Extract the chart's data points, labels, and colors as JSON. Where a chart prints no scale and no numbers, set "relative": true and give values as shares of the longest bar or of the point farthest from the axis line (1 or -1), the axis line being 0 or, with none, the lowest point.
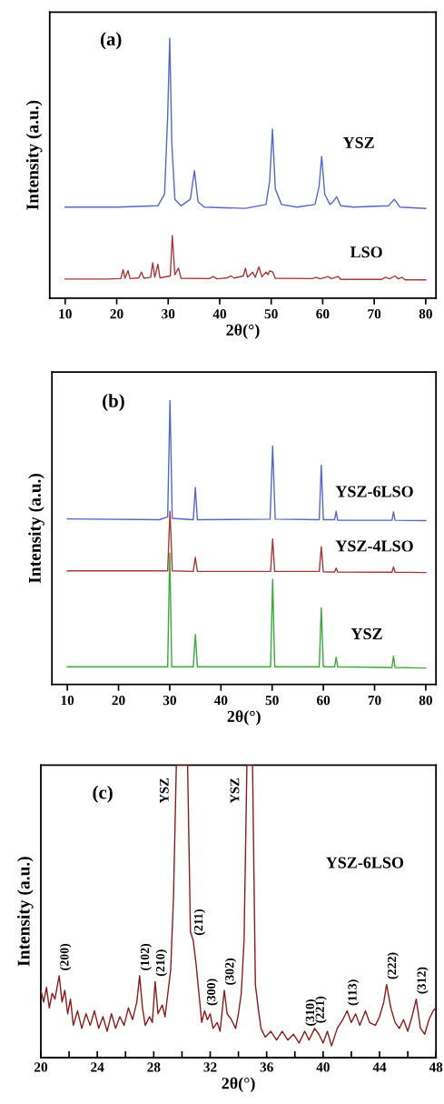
{
  "chart_data": [
    {
      "type": "line",
      "relative": true,
      "xlabel": "2θ(°)",
      "ylabel": "Intensity (a.u.)",
      "xlim": [
        7,
        82
      ],
      "xticks": [
        10,
        20,
        30,
        40,
        50,
        60,
        70,
        80
      ],
      "annotations": [
        "(a)"
      ],
      "series": [
        {
          "name": "YSZ",
          "color": "#5468c8",
          "x": [
            10,
            20,
            28,
            29.3,
            29.9,
            30.3,
            30.7,
            31.3,
            32.5,
            34.3,
            35.1,
            35.8,
            37,
            45,
            49,
            49.7,
            50.25,
            50.8,
            52,
            55,
            58.5,
            59.3,
            59.8,
            60.4,
            61.4,
            62.0,
            62.7,
            63.5,
            66,
            72.8,
            73.9,
            75,
            80
          ],
          "values": [
            0.35,
            0.35,
            0.355,
            0.4,
            0.7,
            1.0,
            0.6,
            0.38,
            0.355,
            0.38,
            0.49,
            0.37,
            0.35,
            0.345,
            0.36,
            0.45,
            0.65,
            0.42,
            0.36,
            0.35,
            0.36,
            0.43,
            0.545,
            0.4,
            0.36,
            0.37,
            0.39,
            0.355,
            0.35,
            0.355,
            0.38,
            0.35,
            0.345
          ]
        },
        {
          "name": "LSO",
          "color": "#a83838",
          "x": [
            10,
            18,
            20.8,
            21.25,
            21.6,
            22.2,
            22.6,
            24.3,
            24.8,
            25.3,
            26.6,
            27,
            27.4,
            28,
            28.4,
            30.4,
            30.8,
            31.3,
            32,
            32.5,
            38,
            38.75,
            39.5,
            41.5,
            42.2,
            42.8,
            44.6,
            45,
            45.4,
            46.4,
            46.9,
            47.6,
            48.2,
            49,
            49.4,
            49.7,
            50.3,
            50.8,
            58,
            58.75,
            59.5,
            61,
            61.7,
            63,
            63.5,
            71.5,
            72.2,
            73,
            74,
            74.7,
            75.4,
            76,
            80
          ],
          "values": [
            0.073,
            0.073,
            0.075,
            0.11,
            0.076,
            0.105,
            0.075,
            0.078,
            0.1,
            0.076,
            0.08,
            0.136,
            0.08,
            0.13,
            0.078,
            0.085,
            0.24,
            0.09,
            0.115,
            0.076,
            0.075,
            0.083,
            0.074,
            0.078,
            0.085,
            0.077,
            0.085,
            0.115,
            0.08,
            0.1,
            0.08,
            0.12,
            0.082,
            0.1,
            0.09,
            0.105,
            0.1,
            0.076,
            0.075,
            0.08,
            0.074,
            0.083,
            0.075,
            0.083,
            0.072,
            0.072,
            0.08,
            0.074,
            0.085,
            0.074,
            0.08,
            0.07,
            0.07
          ]
        }
      ]
    },
    {
      "type": "line",
      "relative": true,
      "xlabel": "2θ(°)",
      "ylabel": "Intensity (a.u.)",
      "xlim": [
        7,
        82
      ],
      "xticks": [
        10,
        20,
        30,
        40,
        50,
        60,
        70,
        80
      ],
      "annotations": [
        "(b)"
      ],
      "series": [
        {
          "name": "YSZ-6LSO",
          "color": "#5468c8",
          "x": [
            10,
            28,
            29.6,
            30.05,
            30.5,
            34.6,
            35,
            35.4,
            49.6,
            50.1,
            50.6,
            59.2,
            59.6,
            60.0,
            62.2,
            62.5,
            62.8,
            73.4,
            73.7,
            74.0,
            80
          ],
          "values": [
            0.583,
            0.58,
            0.59,
            1.0,
            0.585,
            0.58,
            0.694,
            0.58,
            0.582,
            0.84,
            0.582,
            0.58,
            0.772,
            0.58,
            0.58,
            0.61,
            0.578,
            0.578,
            0.608,
            0.578,
            0.577
          ]
        },
        {
          "name": "YSZ-4LSO",
          "color": "#a83838",
          "x": [
            10,
            29.6,
            30.05,
            30.5,
            34.6,
            35,
            35.4,
            49.7,
            50.1,
            50.5,
            59.2,
            59.6,
            60,
            62.2,
            62.5,
            62.8,
            73.4,
            73.7,
            74,
            80
          ],
          "values": [
            0.4,
            0.4,
            0.61,
            0.4,
            0.398,
            0.448,
            0.398,
            0.398,
            0.512,
            0.398,
            0.398,
            0.485,
            0.397,
            0.396,
            0.41,
            0.396,
            0.395,
            0.414,
            0.395,
            0.394
          ]
        },
        {
          "name": "YSZ",
          "color": "#3aa83a",
          "x": [
            10,
            29.6,
            30.0,
            30.4,
            34.6,
            35,
            35.4,
            49.7,
            50.1,
            50.5,
            59.2,
            59.6,
            60,
            62.2,
            62.5,
            62.8,
            73.4,
            73.7,
            74,
            80
          ],
          "values": [
            0.062,
            0.062,
            0.463,
            0.062,
            0.062,
            0.176,
            0.062,
            0.062,
            0.37,
            0.062,
            0.062,
            0.27,
            0.062,
            0.062,
            0.096,
            0.062,
            0.06,
            0.1,
            0.06,
            0.058
          ]
        }
      ]
    },
    {
      "type": "line",
      "relative": true,
      "xlabel": "2θ(°)",
      "ylabel": "Intensity (a.u.)",
      "xlim": [
        20,
        48
      ],
      "xticks": [
        20,
        {
          "value": 22,
          "label": null
        },
        24,
        {
          "value": 26,
          "label": null
        },
        28,
        {
          "value": 30,
          "label": null
        },
        32,
        {
          "value": 34,
          "label": null
        },
        36,
        {
          "value": 38,
          "label": null
        },
        40,
        {
          "value": 42,
          "label": null
        },
        44,
        {
          "value": 46,
          "label": null
        },
        48
      ],
      "annotations": [
        "(c)",
        {
          "text": "(200)",
          "x": 21.3,
          "y": 0.28
        },
        {
          "text": "(102)",
          "x": 27.0,
          "y": 0.28
        },
        {
          "text": "(210)",
          "x": 28.1,
          "y": 0.26
        },
        {
          "text": "YSZ",
          "x": 29.6,
          "y": 1
        },
        {
          "text": "(211)",
          "x": 30.8,
          "y": 0.4
        },
        {
          "text": "(300)",
          "x": 31.7,
          "y": 0.16
        },
        {
          "text": "(302)",
          "x": 33.0,
          "y": 0.23
        },
        {
          "text": "YSZ",
          "x": 34.6,
          "y": 1
        },
        {
          "text": "(310)",
          "x": 38.7,
          "y": 0.09
        },
        {
          "text": "(221)",
          "x": 39.4,
          "y": 0.1
        },
        {
          "text": "(113)",
          "x": 41.7,
          "y": 0.16
        },
        {
          "text": "(222)",
          "x": 44.5,
          "y": 0.25
        },
        {
          "text": "(312)",
          "x": 46.6,
          "y": 0.2
        }
      ],
      "series": [
        {
          "name": "YSZ-6LSO",
          "color": "#8b1a1a",
          "x": [
            20.0,
            20.2,
            20.4,
            20.6,
            20.8,
            21.0,
            21.3,
            21.5,
            21.7,
            21.9,
            22.1,
            22.3,
            22.6,
            22.9,
            23.2,
            23.5,
            23.8,
            24.1,
            24.4,
            24.7,
            25.0,
            25.3,
            25.6,
            25.9,
            26.2,
            26.5,
            26.8,
            27.0,
            27.2,
            27.4,
            27.7,
            27.9,
            28.1,
            28.3,
            28.6,
            28.8,
            29.0,
            29.2,
            29.4,
            29.6,
            30.4,
            30.6,
            30.8,
            31.0,
            31.2,
            31.4,
            31.6,
            31.8,
            32.0,
            32.2,
            32.5,
            32.7,
            33.0,
            33.2,
            33.5,
            33.8,
            34.0,
            34.2,
            34.4,
            34.6,
            35.0,
            35.2,
            35.4,
            35.6,
            35.9,
            36.3,
            36.7,
            37.1,
            37.5,
            37.9,
            38.3,
            38.7,
            39.0,
            39.4,
            39.7,
            40.0,
            40.3,
            40.6,
            41.0,
            41.4,
            41.7,
            42.0,
            42.3,
            42.6,
            43.0,
            43.3,
            43.7,
            44.0,
            44.3,
            44.5,
            44.8,
            45.1,
            45.4,
            45.7,
            46.0,
            46.3,
            46.6,
            46.9,
            47.2,
            47.5,
            47.8,
            48.0
          ],
          "values": [
            0.23,
            0.19,
            0.24,
            0.17,
            0.22,
            0.2,
            0.28,
            0.19,
            0.23,
            0.15,
            0.2,
            0.11,
            0.16,
            0.1,
            0.15,
            0.11,
            0.16,
            0.1,
            0.14,
            0.09,
            0.15,
            0.1,
            0.14,
            0.11,
            0.17,
            0.13,
            0.19,
            0.28,
            0.17,
            0.11,
            0.14,
            0.12,
            0.26,
            0.15,
            0.18,
            0.14,
            0.22,
            0.3,
            0.55,
            1,
            1,
            0.43,
            0.4,
            0.32,
            0.22,
            0.12,
            0.16,
            0.13,
            0.15,
            0.1,
            0.12,
            0.09,
            0.23,
            0.15,
            0.13,
            0.1,
            0.15,
            0.22,
            0.4,
            1,
            1,
            0.25,
            0.17,
            0.1,
            0.07,
            0.09,
            0.06,
            0.09,
            0.06,
            0.08,
            0.05,
            0.09,
            0.06,
            0.1,
            0.08,
            0.05,
            0.09,
            0.04,
            0.1,
            0.13,
            0.16,
            0.12,
            0.15,
            0.11,
            0.16,
            0.12,
            0.11,
            0.14,
            0.19,
            0.25,
            0.17,
            0.12,
            0.1,
            0.13,
            0.09,
            0.14,
            0.2,
            0.1,
            0.08,
            0.13,
            0.16,
            0.17
          ]
        }
      ]
    }
  ]
}
